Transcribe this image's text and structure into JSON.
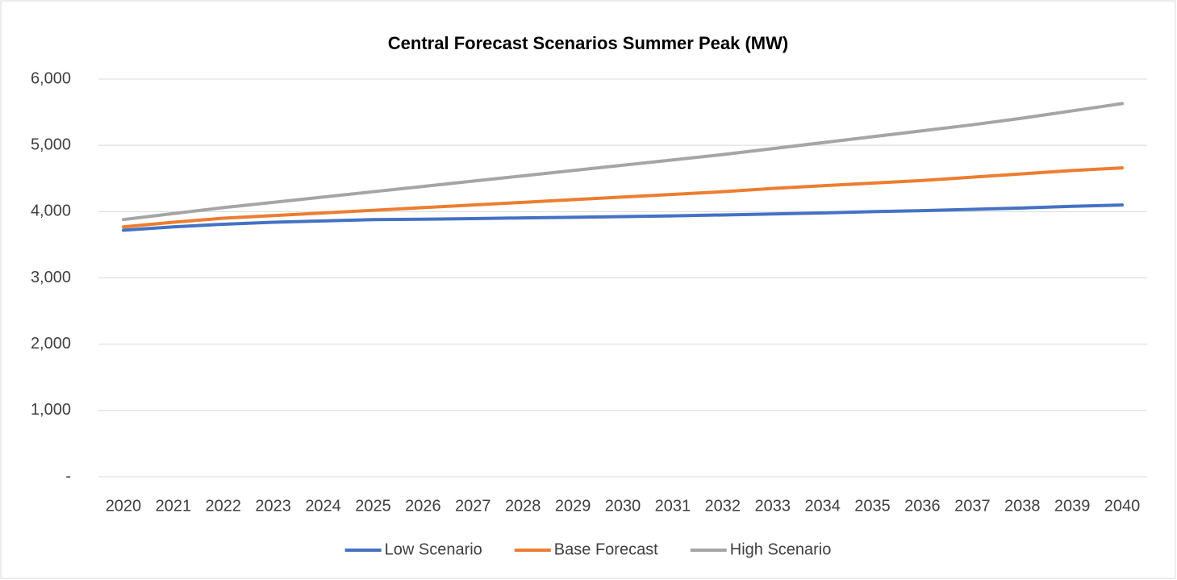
{
  "chart_data": {
    "type": "line",
    "title": "Central Forecast Scenarios Summer Peak (MW)",
    "categories": [
      "2020",
      "2021",
      "2022",
      "2023",
      "2024",
      "2025",
      "2026",
      "2027",
      "2028",
      "2029",
      "2030",
      "2031",
      "2032",
      "2033",
      "2034",
      "2035",
      "2036",
      "2037",
      "2038",
      "2039",
      "2040"
    ],
    "series": [
      {
        "name": "Low Scenario",
        "color": "#4472c4",
        "values": [
          3720,
          3770,
          3810,
          3840,
          3860,
          3880,
          3885,
          3895,
          3905,
          3915,
          3925,
          3935,
          3950,
          3965,
          3980,
          4000,
          4015,
          4035,
          4055,
          4080,
          4100
        ]
      },
      {
        "name": "Base Forecast",
        "color": "#ed7d31",
        "values": [
          3770,
          3840,
          3900,
          3940,
          3980,
          4020,
          4060,
          4100,
          4140,
          4180,
          4220,
          4260,
          4300,
          4350,
          4390,
          4430,
          4470,
          4520,
          4570,
          4620,
          4660
        ]
      },
      {
        "name": "High Scenario",
        "color": "#a5a5a5",
        "values": [
          3880,
          3970,
          4060,
          4140,
          4220,
          4300,
          4380,
          4460,
          4540,
          4620,
          4700,
          4780,
          4860,
          4950,
          5040,
          5130,
          5220,
          5310,
          5410,
          5520,
          5630
        ]
      }
    ],
    "ylim": [
      0,
      6000
    ],
    "yticks": [
      {
        "value": 0,
        "label": "-"
      },
      {
        "value": 1000,
        "label": "1,000"
      },
      {
        "value": 2000,
        "label": "2,000"
      },
      {
        "value": 3000,
        "label": "3,000"
      },
      {
        "value": 4000,
        "label": "4,000"
      },
      {
        "value": 5000,
        "label": "5,000"
      },
      {
        "value": 6000,
        "label": "6,000"
      }
    ],
    "grid": true,
    "legend": "bottom"
  }
}
